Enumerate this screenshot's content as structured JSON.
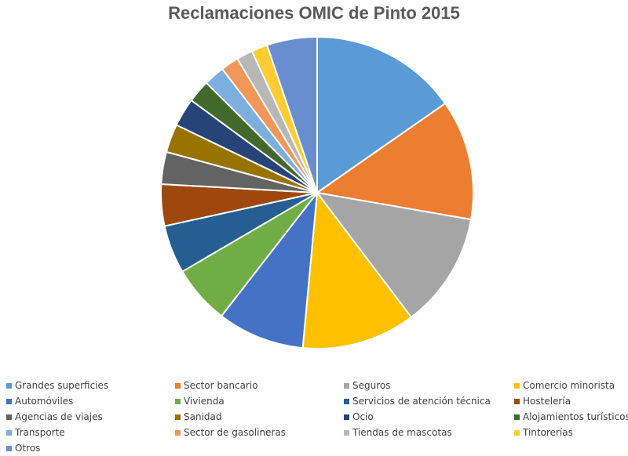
{
  "chart_data": {
    "type": "pie",
    "title": "Reclamaciones OMIC de Pinto 2015",
    "legend_position": "bottom",
    "slices": [
      {
        "label": "Grandes superficies",
        "value": 15.6,
        "color": "#5B9BD5"
      },
      {
        "label": "Sector bancario",
        "value": 12.7,
        "color": "#ED7D31"
      },
      {
        "label": "Seguros",
        "value": 12.2,
        "color": "#A5A5A5"
      },
      {
        "label": "Comercio minorista",
        "value": 12.0,
        "color": "#FFC000"
      },
      {
        "label": "Automóviles",
        "value": 9.2,
        "color": "#4472C4"
      },
      {
        "label": "Vivienda",
        "value": 6.2,
        "color": "#70AD47"
      },
      {
        "label": "Servicios de atención técnica",
        "value": 5.1,
        "color": "#255E91"
      },
      {
        "label": "Hostelería",
        "value": 4.4,
        "color": "#9E480E"
      },
      {
        "label": "Agencias de viajes",
        "value": 3.4,
        "color": "#636363"
      },
      {
        "label": "Sanidad",
        "value": 3.0,
        "color": "#997300"
      },
      {
        "label": "Ocio",
        "value": 3.0,
        "color": "#264478"
      },
      {
        "label": "Alojamientos turísticos",
        "value": 2.4,
        "color": "#43682B"
      },
      {
        "label": "Transporte",
        "value": 2.2,
        "color": "#7CAFDD"
      },
      {
        "label": "Sector de gasolineras",
        "value": 1.9,
        "color": "#F1975A"
      },
      {
        "label": "Tiendas de mascotas",
        "value": 1.7,
        "color": "#B7B7B7"
      },
      {
        "label": "Tintorerías",
        "value": 1.7,
        "color": "#FFCD33"
      },
      {
        "label": "Otros",
        "value": 5.3,
        "color": "#698ED0"
      }
    ]
  }
}
